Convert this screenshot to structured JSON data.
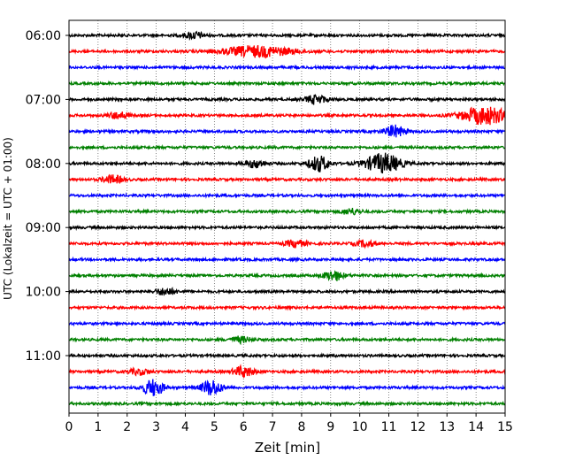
{
  "chart_data": {
    "type": "line",
    "title": "",
    "xlabel": "Zeit  [min]",
    "ylabel": "UTC (Lokalzeit = UTC + 01:00)",
    "xlim": [
      0,
      15
    ],
    "x_ticks": [
      0,
      1,
      2,
      3,
      4,
      5,
      6,
      7,
      8,
      9,
      10,
      11,
      12,
      13,
      14,
      15
    ],
    "y_ticks": [
      "06:00",
      "07:00",
      "08:00",
      "09:00",
      "10:00",
      "11:00"
    ],
    "trace_interval_min": 15,
    "trace_start": "06:00",
    "trace_end": "11:45",
    "grid": "vertical dotted at each minute",
    "color_cycle": [
      "#000000",
      "#ff0000",
      "#0000ff",
      "#008000"
    ],
    "series": [
      {
        "time": "06:00",
        "color": "#000000",
        "events": [
          {
            "x": 4.3,
            "amp": 0.35
          }
        ]
      },
      {
        "time": "06:15",
        "color": "#ff0000",
        "events": [
          {
            "x": 6.5,
            "amp": 0.55,
            "width": 1.2
          }
        ]
      },
      {
        "time": "06:30",
        "color": "#0000ff",
        "events": []
      },
      {
        "time": "06:45",
        "color": "#008000",
        "events": []
      },
      {
        "time": "07:00",
        "color": "#000000",
        "events": [
          {
            "x": 8.5,
            "amp": 0.45
          }
        ]
      },
      {
        "time": "07:15",
        "color": "#ff0000",
        "events": [
          {
            "x": 1.7,
            "amp": 0.35
          },
          {
            "x": 14.3,
            "amp": 0.9,
            "width": 0.8
          }
        ]
      },
      {
        "time": "07:30",
        "color": "#0000ff",
        "events": [
          {
            "x": 11.2,
            "amp": 0.6
          }
        ]
      },
      {
        "time": "07:45",
        "color": "#008000",
        "events": []
      },
      {
        "time": "08:00",
        "color": "#000000",
        "events": [
          {
            "x": 6.4,
            "amp": 0.4
          },
          {
            "x": 8.6,
            "amp": 0.8
          },
          {
            "x": 10.8,
            "amp": 1.0,
            "width": 0.6
          }
        ]
      },
      {
        "time": "08:15",
        "color": "#ff0000",
        "events": [
          {
            "x": 1.5,
            "amp": 0.4
          }
        ]
      },
      {
        "time": "08:30",
        "color": "#0000ff",
        "events": []
      },
      {
        "time": "08:45",
        "color": "#008000",
        "events": [
          {
            "x": 9.7,
            "amp": 0.3
          }
        ]
      },
      {
        "time": "09:00",
        "color": "#000000",
        "events": []
      },
      {
        "time": "09:15",
        "color": "#ff0000",
        "events": [
          {
            "x": 7.8,
            "amp": 0.35
          },
          {
            "x": 10.2,
            "amp": 0.3
          }
        ]
      },
      {
        "time": "09:30",
        "color": "#0000ff",
        "events": []
      },
      {
        "time": "09:45",
        "color": "#008000",
        "events": [
          {
            "x": 9.1,
            "amp": 0.5
          }
        ]
      },
      {
        "time": "10:00",
        "color": "#000000",
        "events": [
          {
            "x": 3.3,
            "amp": 0.35
          }
        ]
      },
      {
        "time": "10:15",
        "color": "#ff0000",
        "events": []
      },
      {
        "time": "10:30",
        "color": "#0000ff",
        "events": []
      },
      {
        "time": "10:45",
        "color": "#008000",
        "events": [
          {
            "x": 5.9,
            "amp": 0.3
          }
        ]
      },
      {
        "time": "11:00",
        "color": "#000000",
        "events": []
      },
      {
        "time": "11:15",
        "color": "#ff0000",
        "events": [
          {
            "x": 2.4,
            "amp": 0.3
          },
          {
            "x": 6.0,
            "amp": 0.55
          }
        ]
      },
      {
        "time": "11:30",
        "color": "#0000ff",
        "events": [
          {
            "x": 2.9,
            "amp": 0.85
          },
          {
            "x": 4.9,
            "amp": 0.8
          }
        ]
      },
      {
        "time": "11:45",
        "color": "#008000",
        "events": []
      }
    ]
  }
}
